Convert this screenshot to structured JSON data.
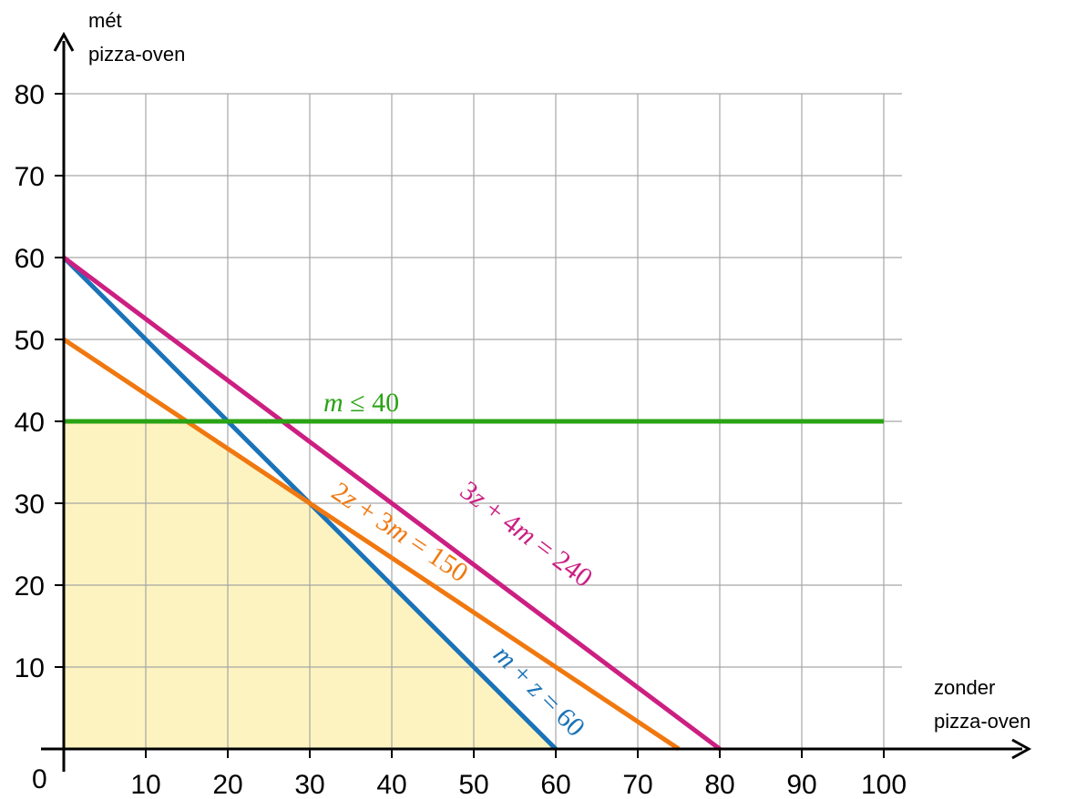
{
  "chart_data": {
    "type": "line",
    "title": "",
    "xlabel": [
      "zonder",
      "pizza-oven"
    ],
    "ylabel": [
      "mét",
      "pizza-oven"
    ],
    "xlim": [
      0,
      100
    ],
    "ylim": [
      0,
      80
    ],
    "x_ticks": [
      10,
      20,
      30,
      40,
      50,
      60,
      70,
      80,
      90,
      100
    ],
    "y_ticks": [
      10,
      20,
      30,
      40,
      50,
      60,
      70,
      80
    ],
    "origin_label": "0",
    "grid": true,
    "feasible_region": {
      "color": "#fdf3c0",
      "points": [
        [
          0,
          0
        ],
        [
          0,
          40
        ],
        [
          15,
          40
        ],
        [
          30,
          30
        ],
        [
          60,
          0
        ]
      ]
    },
    "series": [
      {
        "name": "m + z = 60",
        "label_parts": [
          [
            "m",
            true
          ],
          [
            " + ",
            false
          ],
          [
            "z",
            true
          ],
          [
            " = 60",
            false
          ]
        ],
        "color": "#1a73b8",
        "points": [
          [
            0,
            60
          ],
          [
            60,
            0
          ]
        ]
      },
      {
        "name": "2z + 3m = 150",
        "label_parts": [
          [
            "2",
            false
          ],
          [
            "z",
            true
          ],
          [
            " + 3",
            false
          ],
          [
            "m",
            true
          ],
          [
            " = 150",
            false
          ]
        ],
        "color": "#f07810",
        "points": [
          [
            0,
            50
          ],
          [
            75,
            0
          ]
        ]
      },
      {
        "name": "3z + 4m = 240",
        "label_parts": [
          [
            "3",
            false
          ],
          [
            "z",
            true
          ],
          [
            " + 4",
            false
          ],
          [
            "m",
            true
          ],
          [
            " = 240",
            false
          ]
        ],
        "color": "#cc1f82",
        "points": [
          [
            0,
            60
          ],
          [
            80,
            0
          ]
        ]
      },
      {
        "name": "m ≤ 40",
        "label_parts": [
          [
            "m",
            true
          ],
          [
            " ≤ 40",
            false
          ]
        ],
        "color": "#2aa314",
        "points": [
          [
            0,
            40
          ],
          [
            100,
            40
          ]
        ]
      }
    ]
  }
}
